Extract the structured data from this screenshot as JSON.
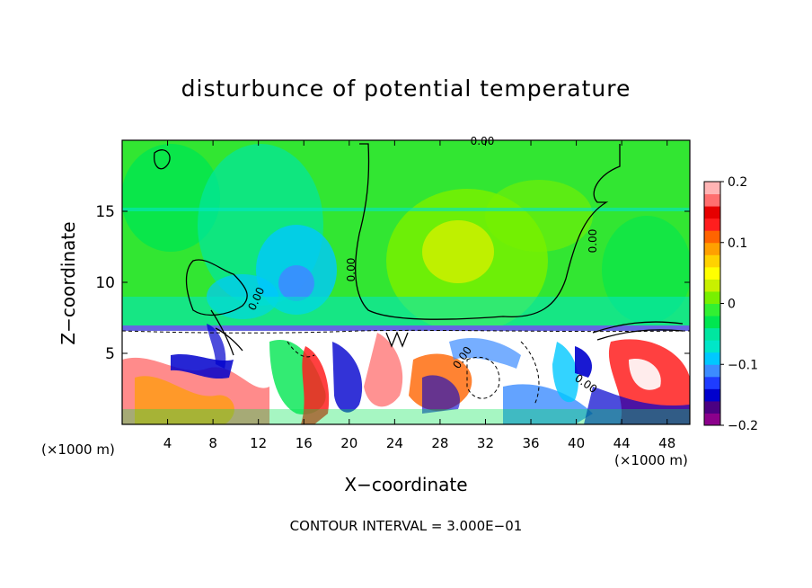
{
  "chart_data": {
    "type": "heatmap",
    "title": "disturbunce of potential temperature",
    "xlabel": "X−coordinate",
    "ylabel": "Z−coordinate",
    "x_unit_label_left": "(×1000 m)",
    "x_unit_label_right": "(×1000 m)",
    "x_ticks": [
      "4",
      "8",
      "12",
      "16",
      "20",
      "24",
      "28",
      "32",
      "36",
      "40",
      "44",
      "48"
    ],
    "x_tick_values": [
      4,
      8,
      12,
      16,
      20,
      24,
      28,
      32,
      36,
      40,
      44,
      48
    ],
    "y_ticks": [
      "5",
      "10",
      "15"
    ],
    "y_tick_values": [
      5,
      10,
      15
    ],
    "xlim": [
      0,
      50
    ],
    "ylim": [
      0,
      20
    ],
    "colorbar": {
      "ticks": [
        "0.2",
        "0.1",
        "0",
        "−0.1",
        "−0.2"
      ],
      "tick_values": [
        0.2,
        0.1,
        0,
        -0.1,
        -0.2
      ],
      "range": [
        -0.2,
        0.2
      ],
      "colors": [
        "#8b008b",
        "#4b0082",
        "#0000cd",
        "#1e3cff",
        "#3c8cff",
        "#00c8ff",
        "#00e6c8",
        "#00e6a0",
        "#00e650",
        "#32f032",
        "#78f000",
        "#c8f000",
        "#ffff00",
        "#ffd200",
        "#ffa000",
        "#ff6400",
        "#ff1e1e",
        "#e60000",
        "#ff6e6e",
        "#ffb4b4"
      ]
    },
    "contour_labels": [
      "0.00",
      "0.00",
      "0.00",
      "0.00",
      "0.00",
      "0.00"
    ],
    "contour_interval_text": "CONTOUR INTERVAL =  3.000E−01"
  }
}
